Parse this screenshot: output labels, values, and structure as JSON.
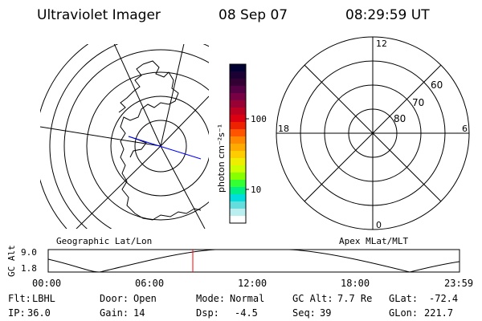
{
  "header": {
    "title": "Ultraviolet Imager",
    "date": "08 Sep 07",
    "time": "08:29:59 UT"
  },
  "left_map": {
    "label": "Geographic Lat/Lon",
    "track_color": "#0000ff"
  },
  "colorbar": {
    "unit_label": "photon cm⁻²s⁻¹",
    "ticks": [
      "100",
      "10"
    ],
    "colors": [
      "#000033",
      "#1a0033",
      "#330033",
      "#550044",
      "#770044",
      "#990033",
      "#bb0022",
      "#dd0011",
      "#ee2200",
      "#ff5500",
      "#ff8800",
      "#ffaa00",
      "#ffcc00",
      "#eeee00",
      "#ccff00",
      "#88ff00",
      "#33ff33",
      "#00ee88",
      "#00dddd",
      "#66dddd",
      "#bbeeee",
      "#ffffff"
    ]
  },
  "right_polar": {
    "label": "Apex MLat/MLT",
    "mlt_labels": [
      "12",
      "18",
      "6",
      "0"
    ],
    "lat_labels": [
      "60",
      "70",
      "80"
    ]
  },
  "altitude_plot": {
    "ylabel": "GC Alt",
    "yticks": [
      "9.0",
      "1.8"
    ],
    "xticks": [
      "00:00",
      "06:00",
      "12:00",
      "18:00",
      "23:59"
    ],
    "marker_time": "08:29:59",
    "marker_color": "#ff0000"
  },
  "status": {
    "row1": [
      {
        "key": "Flt:",
        "value": "LBHL"
      },
      {
        "key": "Door:",
        "value": "Open"
      },
      {
        "key": "Mode:",
        "value": "Normal"
      },
      {
        "key": "GC Alt:",
        "value": "7.7 Re"
      },
      {
        "key": "GLat:",
        "value": "-72.4"
      }
    ],
    "row2": [
      {
        "key": "IP:",
        "value": "36.0"
      },
      {
        "key": "Gain:",
        "value": "14"
      },
      {
        "key": "Dsp:",
        "value": "-4.5"
      },
      {
        "key": "Seq:",
        "value": "39"
      },
      {
        "key": "GLon:",
        "value": "221.7"
      }
    ]
  }
}
